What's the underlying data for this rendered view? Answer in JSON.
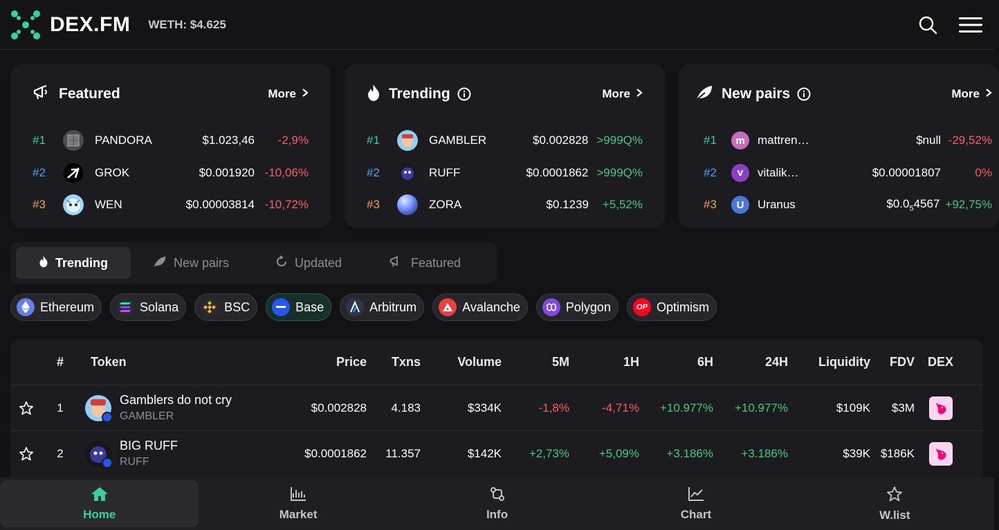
{
  "header": {
    "logo_text": "DEX.FM",
    "weth_label": "WETH: $4.625",
    "icons": [
      "search-icon",
      "menu-icon"
    ]
  },
  "colors": {
    "accent": "#36d1a0",
    "negative": "#f06264",
    "positive": "#4cc67e",
    "rank1": "#3fc9a8",
    "rank2": "#4aa8f0",
    "rank3": "#f0a24a"
  },
  "featured": {
    "title": "Featured",
    "more": "More",
    "items": [
      {
        "rank": "#1",
        "name": "PANDORA",
        "price": "$1.023,46",
        "change": "-2,9%"
      },
      {
        "rank": "#2",
        "name": "GROK",
        "price": "$0.001920",
        "change": "-10,06%"
      },
      {
        "rank": "#3",
        "name": "WEN",
        "price": "$0.00003814",
        "change": "-10,72%"
      }
    ]
  },
  "trending_card": {
    "title": "Trending",
    "more": "More",
    "items": [
      {
        "rank": "#1",
        "name": "GAMBLER",
        "price": "$0.002828",
        "change": ">999Q%"
      },
      {
        "rank": "#2",
        "name": "RUFF",
        "price": "$0.0001862",
        "change": ">999Q%"
      },
      {
        "rank": "#3",
        "name": "ZORA",
        "price": "$0.1239",
        "change": "+5,52%"
      }
    ]
  },
  "newpairs_card": {
    "title": "New pairs",
    "more": "More",
    "items": [
      {
        "rank": "#1",
        "name": "mattren…",
        "avatar": "m",
        "price": "$null",
        "change": "-29,52%"
      },
      {
        "rank": "#2",
        "name": "vitalik…",
        "avatar": "v",
        "price": "$0.00001807",
        "change": "0%"
      },
      {
        "rank": "#3",
        "name": "Uranus",
        "avatar": "U",
        "price_main": "$0.0",
        "price_sub": "5",
        "price_tail": "4567",
        "change": "+92,75%"
      }
    ]
  },
  "tabs": [
    "Trending",
    "New pairs",
    "Updated",
    "Featured"
  ],
  "chains": [
    {
      "label": "Ethereum",
      "icon": "ethereum-icon"
    },
    {
      "label": "Solana",
      "icon": "solana-icon"
    },
    {
      "label": "BSC",
      "icon": "bsc-icon"
    },
    {
      "label": "Base",
      "icon": "base-icon"
    },
    {
      "label": "Arbitrum",
      "icon": "arbitrum-icon"
    },
    {
      "label": "Avalanche",
      "icon": "avalanche-icon"
    },
    {
      "label": "Polygon",
      "icon": "polygon-icon"
    },
    {
      "label": "Optimism",
      "icon": "optimism-icon",
      "icon_text": "OP"
    }
  ],
  "table": {
    "columns": [
      "#",
      "Token",
      "Price",
      "Txns",
      "Volume",
      "5M",
      "1H",
      "6H",
      "24H",
      "Liquidity",
      "FDV",
      "DEX"
    ],
    "rows": [
      {
        "num": "1",
        "name": "Gamblers do not cry",
        "symbol": "GAMBLER",
        "price": "$0.002828",
        "txns": "4.183",
        "volume": "$334K",
        "m5": "-1,8%",
        "h1": "-4,71%",
        "h6": "+10.977%",
        "h24": "+10.977%",
        "liquidity": "$109K",
        "fdv": "$3M"
      },
      {
        "num": "2",
        "name": "BIG RUFF",
        "symbol": "RUFF",
        "price": "$0.0001862",
        "txns": "11.357",
        "volume": "$142K",
        "m5": "+2,73%",
        "h1": "+5,09%",
        "h6": "+3.186%",
        "h24": "+3.186%",
        "liquidity": "$39K",
        "fdv": "$186K"
      }
    ]
  },
  "bottom_nav": [
    {
      "label": "Home",
      "icon": "home-icon"
    },
    {
      "label": "Market",
      "icon": "market-icon"
    },
    {
      "label": "Info",
      "icon": "info-swap-icon"
    },
    {
      "label": "Chart",
      "icon": "chart-icon"
    },
    {
      "label": "W.list",
      "icon": "star-icon"
    }
  ]
}
